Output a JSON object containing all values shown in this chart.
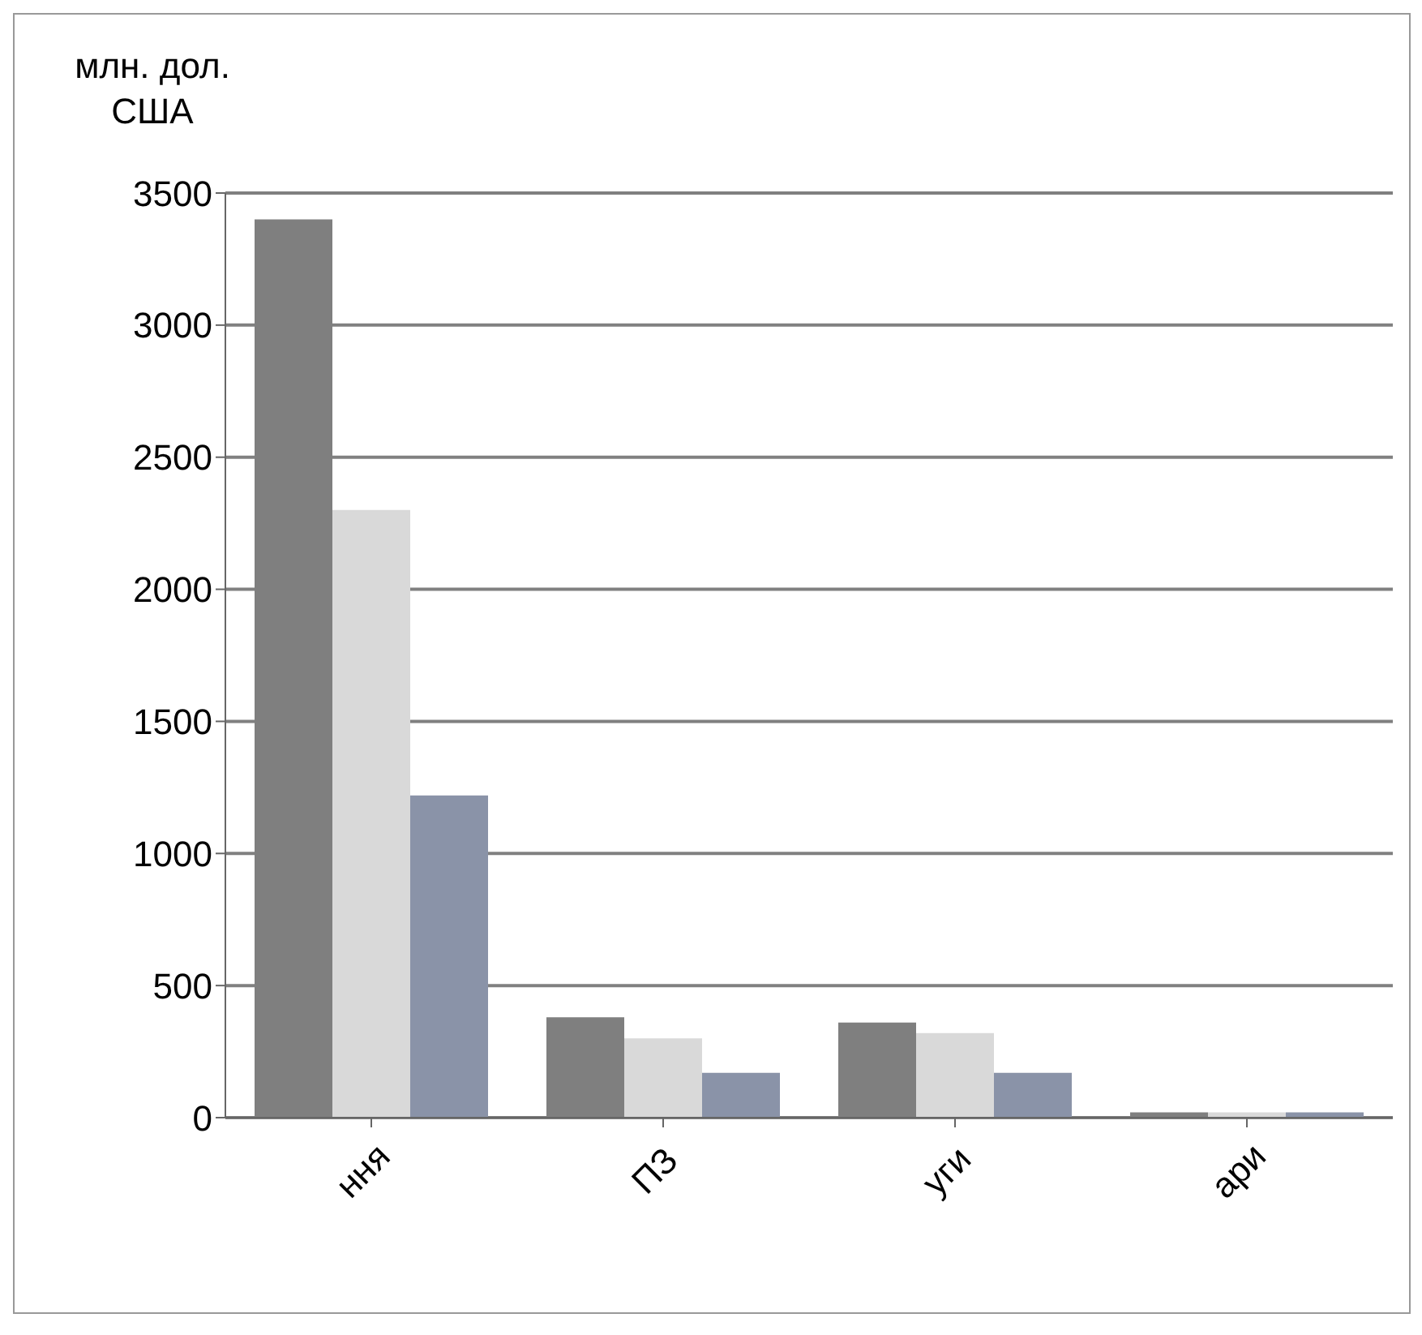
{
  "chart_data": {
    "type": "bar",
    "ylabel": "млн. дол. США",
    "categories": [
      "ння",
      "ПЗ",
      "уги",
      "ари"
    ],
    "series": [
      {
        "color": "#7f7f7f",
        "values": [
          3400,
          380,
          360,
          20
        ]
      },
      {
        "color": "#d9d9d9",
        "values": [
          2300,
          300,
          320,
          20
        ]
      },
      {
        "color": "#8a93a8",
        "values": [
          1220,
          170,
          170,
          20
        ]
      }
    ],
    "ylim": [
      0,
      3500
    ],
    "yticks": [
      0,
      500,
      1000,
      1500,
      2000,
      2500,
      3000,
      3500
    ],
    "grid": "y",
    "legend": false
  }
}
